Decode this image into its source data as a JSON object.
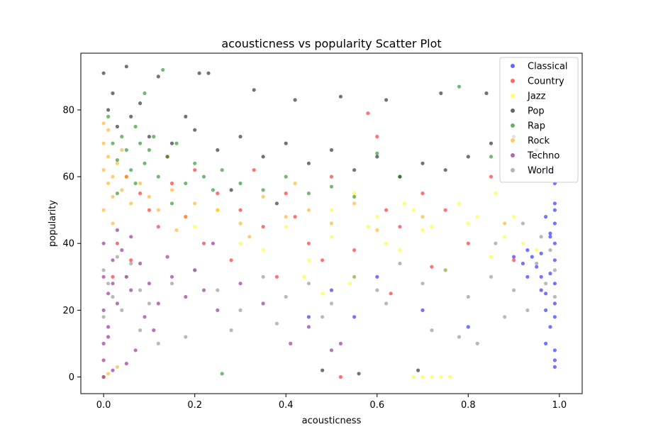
{
  "chart_data": {
    "type": "scatter",
    "title": "acousticness vs popularity Scatter Plot",
    "xlabel": "acousticness",
    "ylabel": "popularity",
    "xlim": [
      -0.05,
      1.05
    ],
    "ylim": [
      -5,
      97
    ],
    "xticks": [
      0.0,
      0.2,
      0.4,
      0.6,
      0.8,
      1.0
    ],
    "xtick_labels": [
      "0.0",
      "0.2",
      "0.4",
      "0.6",
      "0.8",
      "1.0"
    ],
    "yticks": [
      0,
      20,
      40,
      60,
      80
    ],
    "ytick_labels": [
      "0",
      "20",
      "40",
      "60",
      "80"
    ],
    "grid": false,
    "legend_position": "upper right",
    "series": [
      {
        "name": "Classical",
        "color": "#0000ff",
        "points": [
          [
            0.99,
            5
          ],
          [
            0.98,
            15
          ],
          [
            0.99,
            22
          ],
          [
            0.97,
            25
          ],
          [
            0.99,
            28
          ],
          [
            0.98,
            31
          ],
          [
            0.99,
            35
          ],
          [
            0.96,
            37
          ],
          [
            0.99,
            40
          ],
          [
            0.98,
            43
          ],
          [
            0.99,
            46
          ],
          [
            0.97,
            48
          ],
          [
            0.99,
            50
          ],
          [
            0.95,
            33
          ],
          [
            0.94,
            36
          ],
          [
            0.93,
            38
          ],
          [
            0.92,
            34
          ],
          [
            0.96,
            30
          ],
          [
            0.97,
            20
          ],
          [
            0.99,
            18
          ],
          [
            0.98,
            42
          ],
          [
            0.99,
            52
          ],
          [
            0.96,
            26
          ],
          [
            0.93,
            30
          ],
          [
            0.9,
            36
          ],
          [
            0.99,
            58
          ],
          [
            0.99,
            3
          ],
          [
            0.97,
            10
          ],
          [
            0.6,
            30
          ],
          [
            0.55,
            18
          ],
          [
            0.5,
            26
          ],
          [
            0.45,
            18
          ],
          [
            0.7,
            20
          ],
          [
            0.8,
            15
          ],
          [
            0.98,
            62
          ],
          [
            0.99,
            8
          ]
        ]
      },
      {
        "name": "Country",
        "color": "#ff0000",
        "points": [
          [
            0.05,
            60
          ],
          [
            0.08,
            55
          ],
          [
            0.1,
            50
          ],
          [
            0.12,
            45
          ],
          [
            0.15,
            58
          ],
          [
            0.18,
            48
          ],
          [
            0.2,
            62
          ],
          [
            0.22,
            40
          ],
          [
            0.25,
            55
          ],
          [
            0.28,
            35
          ],
          [
            0.3,
            50
          ],
          [
            0.35,
            45
          ],
          [
            0.4,
            55
          ],
          [
            0.45,
            40
          ],
          [
            0.5,
            60
          ],
          [
            0.55,
            38
          ],
          [
            0.6,
            72
          ],
          [
            0.62,
            50
          ],
          [
            0.65,
            45
          ],
          [
            0.7,
            55
          ],
          [
            0.75,
            50
          ],
          [
            0.8,
            40
          ],
          [
            0.85,
            60
          ],
          [
            0.9,
            35
          ],
          [
            0.03,
            40
          ],
          [
            0.06,
            35
          ],
          [
            0.14,
            66
          ],
          [
            0.33,
            62
          ],
          [
            0.48,
            35
          ],
          [
            0.58,
            79
          ],
          [
            0.52,
            0
          ],
          [
            0.63,
            25
          ],
          [
            0.72,
            33
          ],
          [
            0.38,
            30
          ],
          [
            0.42,
            48
          ],
          [
            0.02,
            30
          ]
        ]
      },
      {
        "name": "Jazz",
        "color": "#ffff00",
        "points": [
          [
            0.3,
            40
          ],
          [
            0.35,
            38
          ],
          [
            0.4,
            45
          ],
          [
            0.45,
            35
          ],
          [
            0.5,
            42
          ],
          [
            0.55,
            30
          ],
          [
            0.6,
            48
          ],
          [
            0.65,
            38
          ],
          [
            0.7,
            44
          ],
          [
            0.75,
            32
          ],
          [
            0.8,
            46
          ],
          [
            0.85,
            36
          ],
          [
            0.88,
            42
          ],
          [
            0.9,
            48
          ],
          [
            0.92,
            40
          ],
          [
            0.95,
            38
          ],
          [
            0.5,
            50
          ],
          [
            0.55,
            55
          ],
          [
            0.58,
            45
          ],
          [
            0.62,
            40
          ],
          [
            0.68,
            50
          ],
          [
            0.72,
            45
          ],
          [
            0.78,
            52
          ],
          [
            0.82,
            48
          ],
          [
            0.7,
            0
          ],
          [
            0.72,
            0
          ],
          [
            0.74,
            0
          ],
          [
            0.76,
            0
          ],
          [
            0.68,
            0
          ],
          [
            0.44,
            30
          ],
          [
            0.48,
            25
          ],
          [
            0.54,
            28
          ],
          [
            0.66,
            52
          ],
          [
            0.86,
            55
          ],
          [
            0.2,
            45
          ],
          [
            0.25,
            50
          ]
        ]
      },
      {
        "name": "Pop",
        "color": "#000000",
        "points": [
          [
            0.0,
            91
          ],
          [
            0.05,
            93
          ],
          [
            0.12,
            90
          ],
          [
            0.21,
            91
          ],
          [
            0.23,
            91
          ],
          [
            0.01,
            80
          ],
          [
            0.03,
            75
          ],
          [
            0.06,
            78
          ],
          [
            0.1,
            72
          ],
          [
            0.15,
            70
          ],
          [
            0.2,
            74
          ],
          [
            0.25,
            68
          ],
          [
            0.3,
            72
          ],
          [
            0.35,
            66
          ],
          [
            0.4,
            70
          ],
          [
            0.45,
            64
          ],
          [
            0.5,
            68
          ],
          [
            0.55,
            62
          ],
          [
            0.6,
            66
          ],
          [
            0.65,
            60
          ],
          [
            0.7,
            64
          ],
          [
            0.75,
            62
          ],
          [
            0.8,
            66
          ],
          [
            0.85,
            70
          ],
          [
            0.9,
            72
          ],
          [
            0.95,
            68
          ],
          [
            0.42,
            83
          ],
          [
            0.33,
            86
          ],
          [
            0.52,
            84
          ],
          [
            0.62,
            83
          ],
          [
            0.74,
            85
          ],
          [
            0.84,
            85
          ],
          [
            0.02,
            85
          ],
          [
            0.08,
            82
          ],
          [
            0.18,
            78
          ],
          [
            0.48,
            2
          ],
          [
            0.69,
            2
          ],
          [
            0.56,
            1
          ],
          [
            0.28,
            56
          ],
          [
            0.38,
            52
          ]
        ]
      },
      {
        "name": "Rap",
        "color": "#008000",
        "points": [
          [
            0.01,
            78
          ],
          [
            0.02,
            70
          ],
          [
            0.03,
            65
          ],
          [
            0.04,
            72
          ],
          [
            0.05,
            68
          ],
          [
            0.06,
            62
          ],
          [
            0.07,
            75
          ],
          [
            0.08,
            70
          ],
          [
            0.09,
            64
          ],
          [
            0.1,
            68
          ],
          [
            0.12,
            60
          ],
          [
            0.14,
            66
          ],
          [
            0.16,
            70
          ],
          [
            0.18,
            58
          ],
          [
            0.2,
            64
          ],
          [
            0.22,
            60
          ],
          [
            0.24,
            56
          ],
          [
            0.26,
            62
          ],
          [
            0.3,
            58
          ],
          [
            0.35,
            56
          ],
          [
            0.4,
            60
          ],
          [
            0.45,
            55
          ],
          [
            0.5,
            57
          ],
          [
            0.55,
            54
          ],
          [
            0.6,
            67
          ],
          [
            0.78,
            87
          ],
          [
            0.09,
            85
          ],
          [
            0.13,
            92
          ],
          [
            0.03,
            55
          ],
          [
            0.11,
            72
          ],
          [
            0.15,
            52
          ],
          [
            0.07,
            58
          ],
          [
            0.26,
            1
          ],
          [
            0.85,
            66
          ],
          [
            0.65,
            60
          ]
        ]
      },
      {
        "name": "Rock",
        "color": "#ffa500",
        "points": [
          [
            0.0,
            70
          ],
          [
            0.0,
            62
          ],
          [
            0.01,
            58
          ],
          [
            0.01,
            66
          ],
          [
            0.02,
            60
          ],
          [
            0.02,
            54
          ],
          [
            0.03,
            64
          ],
          [
            0.04,
            56
          ],
          [
            0.05,
            60
          ],
          [
            0.06,
            52
          ],
          [
            0.08,
            58
          ],
          [
            0.1,
            54
          ],
          [
            0.12,
            50
          ],
          [
            0.15,
            56
          ],
          [
            0.18,
            48
          ],
          [
            0.2,
            52
          ],
          [
            0.25,
            50
          ],
          [
            0.3,
            46
          ],
          [
            0.35,
            54
          ],
          [
            0.4,
            48
          ],
          [
            0.45,
            50
          ],
          [
            0.5,
            46
          ],
          [
            0.55,
            52
          ],
          [
            0.6,
            44
          ],
          [
            0.0,
            76
          ],
          [
            0.01,
            74
          ],
          [
            0.0,
            50
          ],
          [
            0.02,
            46
          ],
          [
            0.0,
            0
          ],
          [
            0.01,
            1
          ],
          [
            0.03,
            3
          ],
          [
            0.16,
            44
          ],
          [
            0.32,
            42
          ],
          [
            0.42,
            58
          ],
          [
            0.7,
            48
          ],
          [
            0.88,
            46
          ],
          [
            0.04,
            68
          ]
        ]
      },
      {
        "name": "Techno",
        "color": "#800080",
        "points": [
          [
            0.0,
            30
          ],
          [
            0.0,
            20
          ],
          [
            0.01,
            15
          ],
          [
            0.01,
            25
          ],
          [
            0.0,
            10
          ],
          [
            0.02,
            35
          ],
          [
            0.02,
            28
          ],
          [
            0.03,
            22
          ],
          [
            0.04,
            38
          ],
          [
            0.05,
            30
          ],
          [
            0.06,
            26
          ],
          [
            0.08,
            34
          ],
          [
            0.1,
            28
          ],
          [
            0.12,
            22
          ],
          [
            0.15,
            30
          ],
          [
            0.18,
            24
          ],
          [
            0.2,
            32
          ],
          [
            0.22,
            26
          ],
          [
            0.25,
            20
          ],
          [
            0.3,
            28
          ],
          [
            0.0,
            5
          ],
          [
            0.01,
            12
          ],
          [
            0.0,
            40
          ],
          [
            0.03,
            44
          ],
          [
            0.06,
            42
          ],
          [
            0.09,
            18
          ],
          [
            0.14,
            36
          ],
          [
            0.35,
            22
          ],
          [
            0.45,
            15
          ],
          [
            0.5,
            8
          ],
          [
            0.52,
            10
          ],
          [
            0.41,
            10
          ],
          [
            0.02,
            2
          ],
          [
            0.0,
            0
          ],
          [
            0.11,
            14
          ],
          [
            0.07,
            8
          ],
          [
            0.05,
            4
          ],
          [
            0.24,
            40
          ]
        ]
      },
      {
        "name": "World",
        "color": "#808080",
        "points": [
          [
            0.0,
            32
          ],
          [
            0.01,
            28
          ],
          [
            0.02,
            24
          ],
          [
            0.03,
            36
          ],
          [
            0.04,
            20
          ],
          [
            0.05,
            30
          ],
          [
            0.06,
            34
          ],
          [
            0.08,
            26
          ],
          [
            0.1,
            22
          ],
          [
            0.15,
            28
          ],
          [
            0.2,
            32
          ],
          [
            0.25,
            26
          ],
          [
            0.3,
            20
          ],
          [
            0.35,
            30
          ],
          [
            0.4,
            24
          ],
          [
            0.45,
            28
          ],
          [
            0.5,
            22
          ],
          [
            0.55,
            30
          ],
          [
            0.6,
            26
          ],
          [
            0.65,
            34
          ],
          [
            0.7,
            28
          ],
          [
            0.75,
            32
          ],
          [
            0.8,
            24
          ],
          [
            0.85,
            30
          ],
          [
            0.9,
            26
          ],
          [
            0.95,
            34
          ],
          [
            0.97,
            28
          ],
          [
            0.99,
            32
          ],
          [
            0.98,
            38
          ],
          [
            0.96,
            42
          ],
          [
            0.93,
            20
          ],
          [
            0.88,
            18
          ],
          [
            0.82,
            10
          ],
          [
            0.78,
            12
          ],
          [
            0.72,
            14
          ],
          [
            0.62,
            22
          ],
          [
            0.48,
            18
          ],
          [
            0.38,
            16
          ],
          [
            0.28,
            14
          ],
          [
            0.18,
            12
          ],
          [
            0.12,
            10
          ],
          [
            0.08,
            14
          ],
          [
            0.0,
            18
          ],
          [
            0.99,
            24
          ],
          [
            0.92,
            46
          ],
          [
            0.86,
            40
          ]
        ]
      }
    ]
  }
}
